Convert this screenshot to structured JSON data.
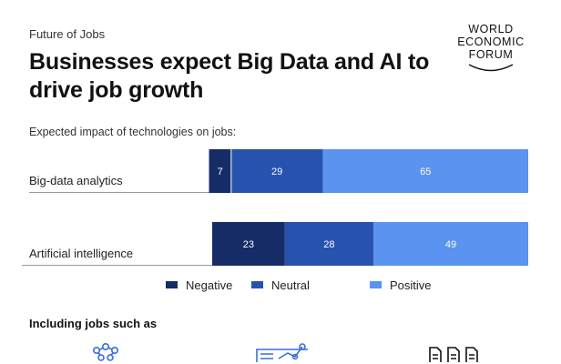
{
  "header": {
    "kicker": "Future of Jobs",
    "title": "Businesses expect Big Data and AI to drive job growth",
    "logo_lines": [
      "WORLD",
      "ECONOMIC",
      "FORUM"
    ]
  },
  "chart_subtitle": "Expected impact of technologies on jobs:",
  "chart_data": {
    "type": "bar",
    "orientation": "horizontal",
    "stacked": true,
    "categories": [
      "Big-data analytics",
      "Artificial intelligence"
    ],
    "series": [
      {
        "name": "Negative",
        "values": [
          7,
          23
        ],
        "color": "#152C66"
      },
      {
        "name": "Neutral",
        "values": [
          29,
          28
        ],
        "color": "#2753AE"
      },
      {
        "name": "Positive",
        "values": [
          65,
          49
        ],
        "color": "#5A93F0"
      }
    ],
    "value_label_color": "#ffffff",
    "legend_position": "bottom",
    "grid": false
  },
  "footer": {
    "jobs_label": "Including jobs such as",
    "icons": [
      "circuit-head-icon",
      "line-chart-icon",
      "documents-icon"
    ]
  }
}
